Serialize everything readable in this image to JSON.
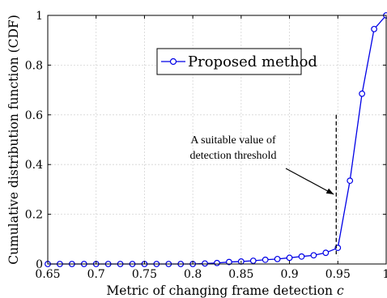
{
  "chart_data": {
    "type": "line",
    "xlabel": "Metric of changing frame detection c",
    "ylabel": "Cumulative distribution function (CDF)",
    "xlim": [
      0.65,
      1
    ],
    "ylim": [
      0,
      1
    ],
    "xticks": [
      "0.65",
      "0.7",
      "0.75",
      "0.8",
      "0.85",
      "0.9",
      "0.95",
      "1"
    ],
    "yticks": [
      "0",
      "0.2",
      "0.4",
      "0.6",
      "0.8",
      "1"
    ],
    "xtick_values": [
      0.65,
      0.7,
      0.75,
      0.8,
      0.85,
      0.9,
      0.95,
      1
    ],
    "ytick_values": [
      0,
      0.2,
      0.4,
      0.6,
      0.8,
      1
    ],
    "grid": true,
    "legend_position": "upper-center",
    "series": [
      {
        "name": "Proposed method",
        "color": "#0000e6",
        "marker": "circle",
        "x": [
          0.65,
          0.6625,
          0.675,
          0.6875,
          0.7,
          0.7125,
          0.725,
          0.7375,
          0.75,
          0.7625,
          0.775,
          0.7875,
          0.8,
          0.8125,
          0.825,
          0.8375,
          0.85,
          0.8625,
          0.875,
          0.8875,
          0.9,
          0.9125,
          0.925,
          0.9375,
          0.95,
          0.9625,
          0.975,
          0.9875,
          1.0
        ],
        "y": [
          0.0,
          0.0,
          0.0,
          0.0,
          0.0,
          0.0,
          0.0,
          0.0,
          0.0,
          0.0,
          0.0,
          0.0,
          0.0,
          0.002,
          0.004,
          0.008,
          0.01,
          0.013,
          0.017,
          0.02,
          0.025,
          0.03,
          0.035,
          0.045,
          0.065,
          0.335,
          0.685,
          0.945,
          1.0
        ]
      }
    ],
    "annotation": {
      "lines": [
        "A suitable value of",
        "detection threshold"
      ],
      "threshold_x": 0.95,
      "threshold_y_top": 0.6
    }
  }
}
